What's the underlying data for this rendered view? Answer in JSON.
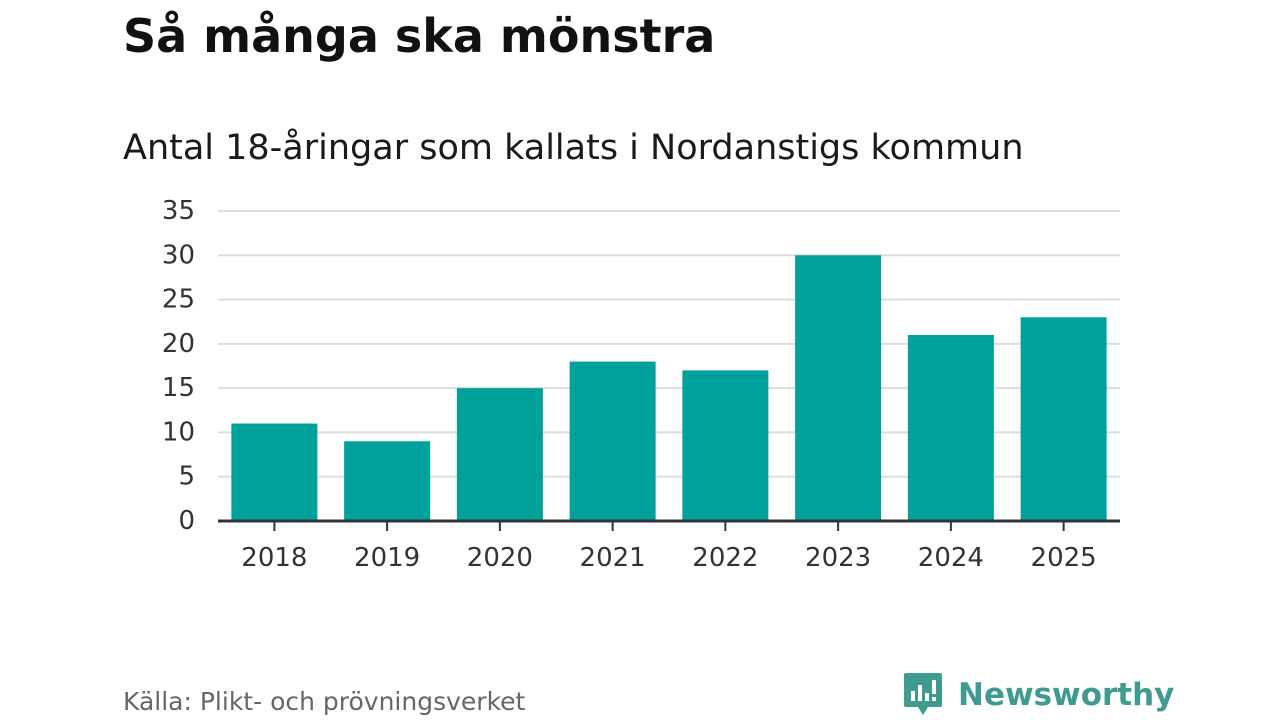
{
  "title": "Så många ska mönstra",
  "subtitle": "Antal 18-åringar som kallats i Nordanstigs kommun",
  "source": "Källa: Plikt- och prövningsverket",
  "brand": {
    "name": "Newsworthy",
    "icon": "newsworthy-logo-icon",
    "color": "#3f9a8f"
  },
  "chart_data": {
    "type": "bar",
    "categories": [
      "2018",
      "2019",
      "2020",
      "2021",
      "2022",
      "2023",
      "2024",
      "2025"
    ],
    "values": [
      11,
      9,
      15,
      18,
      17,
      30,
      21,
      23
    ],
    "title": "Så många ska mönstra",
    "subtitle": "Antal 18-åringar som kallats i Nordanstigs kommun",
    "xlabel": "",
    "ylabel": "",
    "ylim": [
      0,
      35
    ],
    "yticks": [
      "0",
      "5",
      "10",
      "15",
      "20",
      "25",
      "30",
      "35"
    ],
    "grid": true,
    "legend": "none",
    "bar_color": "#00a19a",
    "grid_color": "#dddddd",
    "axis_color": "#333333"
  }
}
